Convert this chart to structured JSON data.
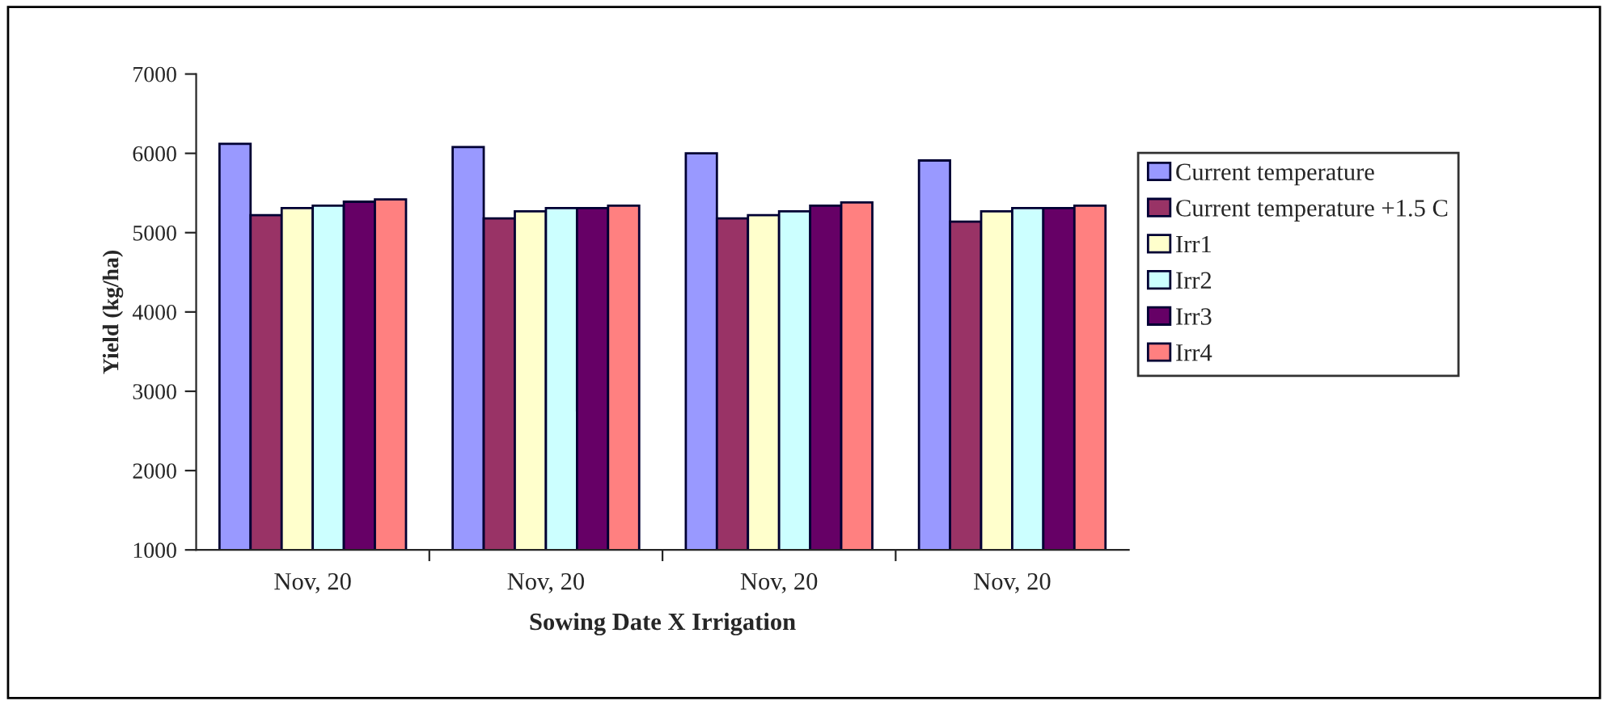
{
  "chart_data": {
    "type": "bar",
    "xlabel": "Sowing Date X Irrigation",
    "ylabel": "Yield (kg/ha)",
    "categories": [
      "Nov, 20",
      "Nov, 20",
      "Nov, 20",
      "Nov, 20"
    ],
    "series": [
      {
        "name": "Current temperature",
        "color": "#9999ff",
        "values": [
          6120,
          6080,
          6000,
          5910
        ]
      },
      {
        "name": "Current temperature +1.5 C",
        "color": "#993366",
        "values": [
          5220,
          5180,
          5180,
          5140
        ]
      },
      {
        "name": "Irr1",
        "color": "#ffffcc",
        "values": [
          5310,
          5270,
          5220,
          5270
        ]
      },
      {
        "name": "Irr2",
        "color": "#ccffff",
        "values": [
          5340,
          5310,
          5270,
          5310
        ]
      },
      {
        "name": "Irr3",
        "color": "#660066",
        "values": [
          5390,
          5310,
          5340,
          5310
        ]
      },
      {
        "name": "Irr4",
        "color": "#ff8080",
        "values": [
          5420,
          5340,
          5380,
          5340
        ]
      }
    ],
    "ylim": [
      1000,
      7000
    ],
    "yticks": [
      1000,
      2000,
      3000,
      4000,
      5000,
      6000,
      7000
    ],
    "grid": false,
    "legend": "right"
  }
}
